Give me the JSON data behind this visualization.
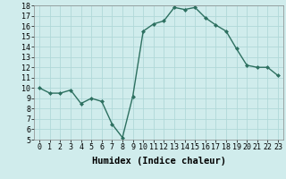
{
  "x": [
    0,
    1,
    2,
    3,
    4,
    5,
    6,
    7,
    8,
    9,
    10,
    11,
    12,
    13,
    14,
    15,
    16,
    17,
    18,
    19,
    20,
    21,
    22,
    23
  ],
  "y": [
    10.0,
    9.5,
    9.5,
    9.8,
    8.5,
    9.0,
    8.7,
    6.5,
    5.2,
    9.2,
    15.5,
    16.2,
    16.5,
    17.8,
    17.6,
    17.8,
    16.8,
    16.1,
    15.5,
    13.8,
    12.2,
    12.0,
    12.0,
    11.2
  ],
  "xlabel": "Humidex (Indice chaleur)",
  "ylim": [
    5,
    18
  ],
  "xlim": [
    -0.5,
    23.5
  ],
  "yticks": [
    5,
    6,
    7,
    8,
    9,
    10,
    11,
    12,
    13,
    14,
    15,
    16,
    17,
    18
  ],
  "xticks": [
    0,
    1,
    2,
    3,
    4,
    5,
    6,
    7,
    8,
    9,
    10,
    11,
    12,
    13,
    14,
    15,
    16,
    17,
    18,
    19,
    20,
    21,
    22,
    23
  ],
  "xtick_labels": [
    "0",
    "1",
    "2",
    "3",
    "4",
    "5",
    "6",
    "7",
    "8",
    "9",
    "10",
    "11",
    "12",
    "13",
    "14",
    "15",
    "16",
    "17",
    "18",
    "19",
    "20",
    "21",
    "22",
    "23"
  ],
  "line_color": "#2d7060",
  "marker": "D",
  "marker_size": 2.0,
  "bg_color": "#d0ecec",
  "grid_color": "#b0d8d8",
  "font_color": "#000000",
  "xlabel_fontsize": 7.5,
  "tick_fontsize": 6.0,
  "linewidth": 1.0
}
